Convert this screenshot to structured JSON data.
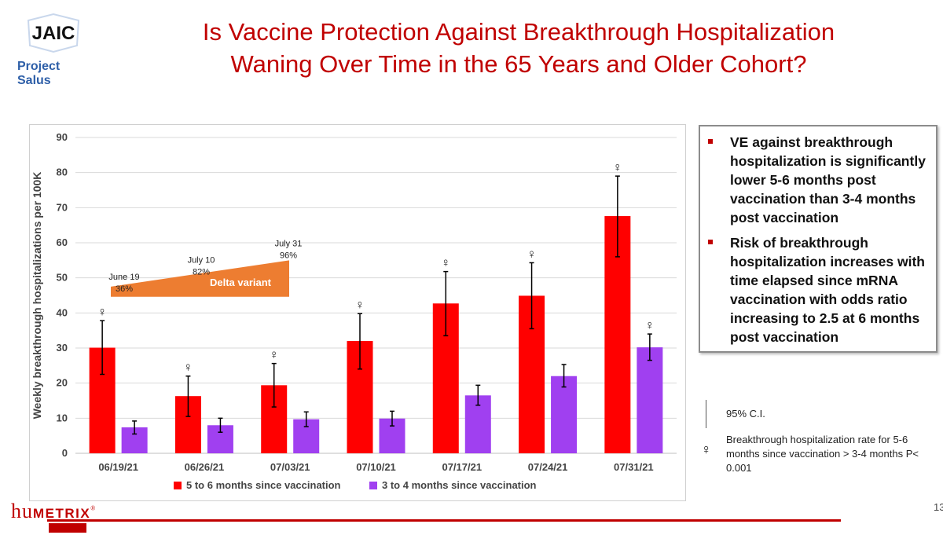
{
  "logo": {
    "mark": "JAIC",
    "subtitle": "Project Salus"
  },
  "title_line1": "Is Vaccine Protection Against Breakthrough Hospitalization",
  "title_line2": "Waning Over Time in the 65 Years and Older Cohort?",
  "chart_data": {
    "type": "bar",
    "ylabel": "Weekly breakthrough hospitalizations per 100K",
    "ylim": [
      0,
      90
    ],
    "yticks": [
      0,
      10,
      20,
      30,
      40,
      50,
      60,
      70,
      80,
      90
    ],
    "grid": true,
    "legend_position": "bottom",
    "categories": [
      "06/19/21",
      "06/26/21",
      "07/03/21",
      "07/10/21",
      "07/17/21",
      "07/24/21",
      "07/31/21"
    ],
    "series": [
      {
        "name": "5 to 6 months since vaccination",
        "color": "#ff0000",
        "values": [
          30.1,
          16.3,
          19.4,
          32.0,
          42.7,
          44.9,
          67.6
        ],
        "ci_low": [
          22.5,
          10.5,
          13.2,
          24.0,
          33.5,
          35.5,
          56.0
        ],
        "ci_high": [
          37.8,
          22.0,
          25.6,
          39.8,
          51.8,
          54.3,
          79.0
        ]
      },
      {
        "name": "3 to 4 months since vaccination",
        "color": "#a040f0",
        "values": [
          7.4,
          8.0,
          9.7,
          9.9,
          16.5,
          22.0,
          30.2
        ],
        "ci_low": [
          5.5,
          6.0,
          7.6,
          7.8,
          13.7,
          18.9,
          26.5
        ],
        "ci_high": [
          9.2,
          10.0,
          11.8,
          12.0,
          19.4,
          25.3,
          34.0
        ]
      }
    ],
    "significance_symbol": "♀",
    "delta_annotation": {
      "label": "Delta variant",
      "color": "#ed7d31",
      "points": [
        {
          "date": "June 19",
          "pct": "36%",
          "value": 36
        },
        {
          "date": "July 10",
          "pct": "82%",
          "value": 82
        },
        {
          "date": "July 31",
          "pct": "96%",
          "value": 96
        }
      ]
    }
  },
  "bullets": [
    "VE against breakthrough hospitalization is significantly lower 5-6 months post vaccination than 3-4 months post vaccination",
    "Risk of breakthrough hospitalization increases with time elapsed since mRNA vaccination with odds ratio increasing to 2.5 at 6 months post vaccination"
  ],
  "legend_notes": {
    "ci": "95% C.I.",
    "sig_icon": "♀",
    "sig": "Breakthrough hospitalization rate for 5-6 months since vaccination > 3-4 months P< 0.001"
  },
  "footer": {
    "brand_hu": "hu",
    "brand_rest": "METRIX",
    "reg": "®",
    "page_number": "13"
  },
  "colors": {
    "title": "#c00000",
    "accent": "#c00000"
  }
}
